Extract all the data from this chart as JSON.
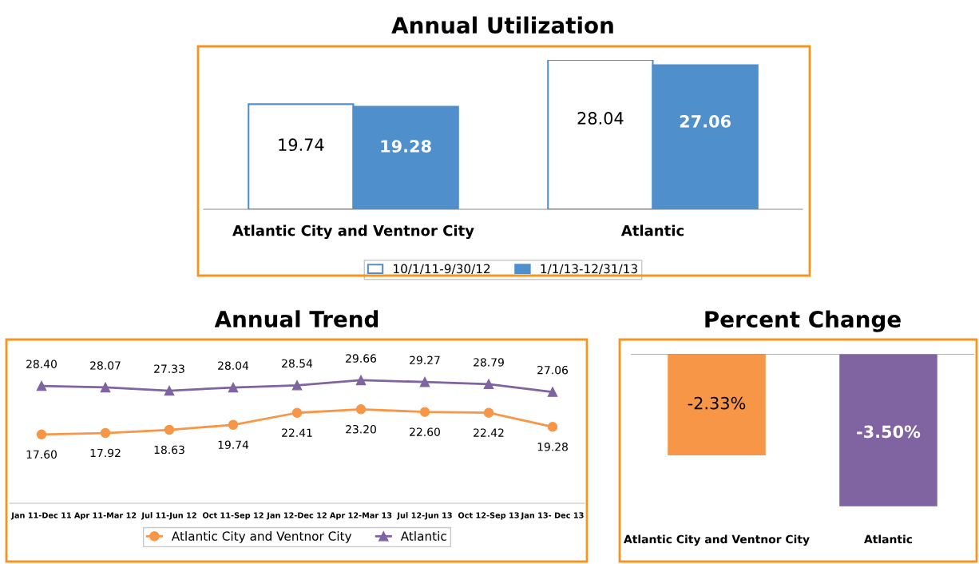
{
  "chart_data": [
    {
      "type": "bar",
      "title": "Annual Utilization",
      "categories": [
        "Atlantic City and Ventnor City",
        "Atlantic"
      ],
      "legend": "bottom",
      "data_labels": true,
      "series": [
        {
          "name": "10/1/11-9/30/12",
          "color": "#ffffff",
          "values": [
            19.74,
            28.04
          ]
        },
        {
          "name": "1/1/13-12/31/13",
          "color": "#4f8fcc",
          "values": [
            19.28,
            27.06
          ]
        }
      ]
    },
    {
      "type": "line",
      "title": "Annual Trend",
      "categories": [
        "Jan 11-Dec 11",
        "Apr 11-Mar 12",
        "Jul 11-Jun 12",
        "Oct 11-Sep 12",
        "Jan 12-Dec 12",
        "Apr 12-Mar 13",
        "Jul 12-Jun 13",
        "Oct 12-Sep 13",
        "Jan 13- Dec 13"
      ],
      "legend": "bottom",
      "series": [
        {
          "name": "Atlantic City and Ventnor City",
          "color": "#f79646",
          "marker": "circle",
          "values": [
            17.6,
            17.92,
            18.63,
            19.74,
            22.41,
            23.2,
            22.6,
            22.42,
            19.28
          ],
          "value_labels": [
            "17.60",
            "17.92",
            "18.63",
            "19.74",
            "22.41",
            "23.20",
            "22.60",
            "22.42",
            "19.28"
          ]
        },
        {
          "name": "Atlantic",
          "color": "#8064a2",
          "marker": "triangle",
          "values": [
            28.4,
            28.07,
            27.33,
            28.04,
            28.54,
            29.66,
            29.27,
            28.79,
            27.06
          ],
          "value_labels": [
            "28.40",
            "28.07",
            "27.33",
            "28.04",
            "28.54",
            "29.66",
            "29.27",
            "28.79",
            "27.06"
          ]
        }
      ]
    },
    {
      "type": "bar",
      "title": "Percent Change",
      "categories": [
        "Atlantic City and Ventnor City",
        "Atlantic"
      ],
      "values": [
        -2.33,
        -3.5
      ],
      "colors": [
        "#f79646",
        "#8064a2"
      ],
      "value_labels": [
        "-2.33%",
        "-3.50%"
      ]
    }
  ]
}
